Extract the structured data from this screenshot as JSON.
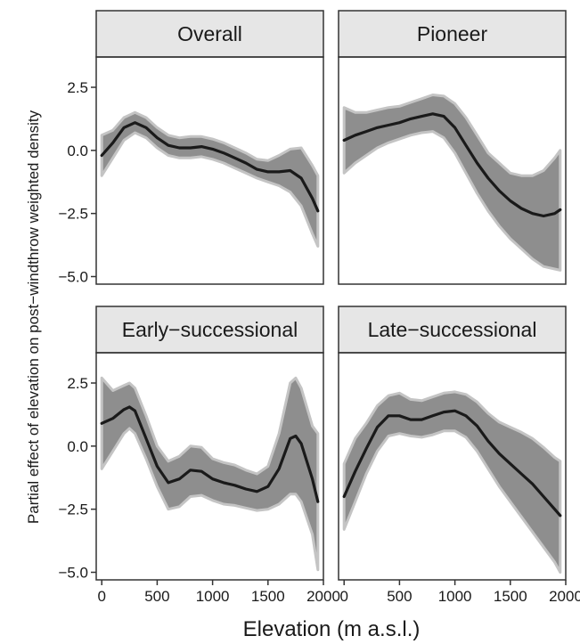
{
  "chart_data": {
    "type": "line",
    "layout": "facet-grid-2x2",
    "xlabel": "Elevation (m a.s.l.)",
    "ylabel": "Partial effect of elevation on post−windthrow weighted density",
    "xlim": [
      -50,
      2000
    ],
    "ylim": [
      -5.3,
      3.7
    ],
    "x_ticks": [
      0,
      500,
      1000,
      1500,
      2000
    ],
    "x_tick_labels": [
      "0",
      "500",
      "1000",
      "1500",
      "2000"
    ],
    "y_ticks": [
      -5,
      -2.5,
      0,
      2.5
    ],
    "y_tick_labels": [
      "−5.0",
      "−2.5",
      "0.0",
      "2.5"
    ],
    "colors": {
      "line": "#1a1a1a",
      "band": "#8e8e8e",
      "band_edge": "#c4c4c4",
      "strip_fill": "#e6e6e6",
      "panel_border": "#333333"
    },
    "facets": [
      {
        "name": "Overall",
        "x": [
          0,
          100,
          200,
          300,
          400,
          500,
          600,
          700,
          800,
          900,
          1000,
          1100,
          1200,
          1300,
          1400,
          1500,
          1600,
          1700,
          1800,
          1900,
          1950
        ],
        "y": [
          -0.2,
          0.3,
          0.9,
          1.1,
          0.9,
          0.5,
          0.2,
          0.1,
          0.1,
          0.15,
          0.05,
          -0.1,
          -0.3,
          -0.5,
          -0.75,
          -0.85,
          -0.85,
          -0.8,
          -1.1,
          -1.9,
          -2.4
        ],
        "lower": [
          -1.0,
          -0.3,
          0.4,
          0.7,
          0.5,
          0.1,
          -0.2,
          -0.3,
          -0.3,
          -0.25,
          -0.35,
          -0.5,
          -0.7,
          -0.9,
          -1.1,
          -1.25,
          -1.4,
          -1.65,
          -2.2,
          -3.3,
          -3.8
        ],
        "upper": [
          0.6,
          0.8,
          1.3,
          1.5,
          1.3,
          0.9,
          0.6,
          0.5,
          0.55,
          0.55,
          0.45,
          0.3,
          0.1,
          -0.1,
          -0.35,
          -0.4,
          -0.2,
          0.05,
          0.1,
          -0.6,
          -1.0
        ]
      },
      {
        "name": "Pioneer",
        "x": [
          0,
          100,
          200,
          300,
          400,
          500,
          600,
          700,
          800,
          900,
          1000,
          1100,
          1200,
          1300,
          1400,
          1500,
          1600,
          1700,
          1800,
          1900,
          1950
        ],
        "y": [
          0.4,
          0.6,
          0.75,
          0.9,
          1.0,
          1.1,
          1.25,
          1.35,
          1.45,
          1.35,
          0.9,
          0.2,
          -0.5,
          -1.1,
          -1.6,
          -2.0,
          -2.3,
          -2.5,
          -2.6,
          -2.5,
          -2.35
        ],
        "lower": [
          -0.9,
          -0.5,
          -0.2,
          0.1,
          0.3,
          0.45,
          0.6,
          0.7,
          0.75,
          0.5,
          -0.1,
          -0.9,
          -1.7,
          -2.4,
          -3.0,
          -3.5,
          -3.9,
          -4.3,
          -4.6,
          -4.7,
          -4.75
        ],
        "upper": [
          1.7,
          1.5,
          1.5,
          1.6,
          1.7,
          1.75,
          1.9,
          2.05,
          2.2,
          2.15,
          1.85,
          1.3,
          0.6,
          -0.1,
          -0.5,
          -0.9,
          -1.0,
          -1.0,
          -0.8,
          -0.3,
          0.0
        ]
      },
      {
        "name": "Early−successional",
        "x": [
          0,
          100,
          200,
          250,
          300,
          400,
          500,
          600,
          700,
          800,
          900,
          1000,
          1100,
          1200,
          1300,
          1400,
          1500,
          1600,
          1700,
          1750,
          1800,
          1900,
          1950
        ],
        "y": [
          0.9,
          1.1,
          1.45,
          1.55,
          1.4,
          0.3,
          -0.8,
          -1.45,
          -1.3,
          -0.95,
          -1.0,
          -1.3,
          -1.45,
          -1.55,
          -1.7,
          -1.8,
          -1.6,
          -0.9,
          0.3,
          0.4,
          0.1,
          -1.3,
          -2.2
        ],
        "lower": [
          -0.9,
          -0.2,
          0.5,
          0.7,
          0.5,
          -0.5,
          -1.6,
          -2.5,
          -2.4,
          -2.0,
          -1.95,
          -2.15,
          -2.3,
          -2.35,
          -2.45,
          -2.55,
          -2.5,
          -2.3,
          -1.9,
          -1.9,
          -2.2,
          -3.5,
          -4.9
        ],
        "upper": [
          2.7,
          2.2,
          2.4,
          2.5,
          2.3,
          1.2,
          0.0,
          -0.6,
          -0.4,
          0.0,
          -0.05,
          -0.5,
          -0.65,
          -0.75,
          -0.95,
          -1.1,
          -0.8,
          0.5,
          2.5,
          2.7,
          2.3,
          0.8,
          0.5
        ]
      },
      {
        "name": "Late−successional",
        "x": [
          0,
          100,
          200,
          300,
          400,
          500,
          600,
          700,
          800,
          900,
          1000,
          1100,
          1200,
          1300,
          1400,
          1500,
          1600,
          1700,
          1800,
          1900,
          1950
        ],
        "y": [
          -2.0,
          -1.0,
          -0.1,
          0.75,
          1.2,
          1.2,
          1.05,
          1.05,
          1.2,
          1.35,
          1.4,
          1.2,
          0.8,
          0.2,
          -0.3,
          -0.7,
          -1.1,
          -1.5,
          -2.0,
          -2.5,
          -2.75
        ],
        "lower": [
          -3.3,
          -2.2,
          -1.1,
          -0.2,
          0.4,
          0.5,
          0.4,
          0.35,
          0.45,
          0.6,
          0.6,
          0.35,
          -0.2,
          -0.9,
          -1.6,
          -2.2,
          -2.8,
          -3.4,
          -4.0,
          -4.6,
          -5.0
        ],
        "upper": [
          -0.7,
          0.3,
          0.9,
          1.6,
          2.0,
          2.1,
          1.85,
          1.8,
          1.95,
          2.1,
          2.15,
          2.05,
          1.75,
          1.3,
          0.95,
          0.75,
          0.55,
          0.3,
          -0.05,
          -0.45,
          -0.6
        ]
      }
    ]
  }
}
